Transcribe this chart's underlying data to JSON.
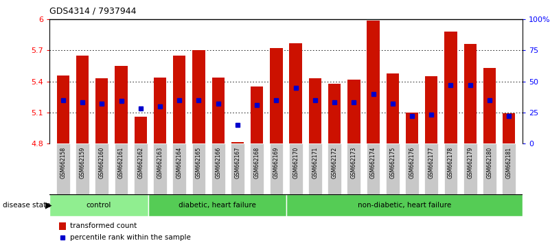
{
  "title": "GDS4314 / 7937944",
  "samples": [
    "GSM662158",
    "GSM662159",
    "GSM662160",
    "GSM662161",
    "GSM662162",
    "GSM662163",
    "GSM662164",
    "GSM662165",
    "GSM662166",
    "GSM662167",
    "GSM662168",
    "GSM662169",
    "GSM662170",
    "GSM662171",
    "GSM662172",
    "GSM662173",
    "GSM662174",
    "GSM662175",
    "GSM662176",
    "GSM662177",
    "GSM662178",
    "GSM662179",
    "GSM662180",
    "GSM662181"
  ],
  "bar_values": [
    5.46,
    5.65,
    5.43,
    5.55,
    5.06,
    5.44,
    5.65,
    5.7,
    5.44,
    4.81,
    5.35,
    5.72,
    5.77,
    5.43,
    5.38,
    5.42,
    5.99,
    5.48,
    5.1,
    5.45,
    5.88,
    5.76,
    5.53,
    5.09
  ],
  "percentile_values": [
    35,
    33,
    32,
    34,
    28,
    30,
    35,
    35,
    32,
    15,
    31,
    35,
    45,
    35,
    33,
    33,
    40,
    32,
    22,
    23,
    47,
    47,
    35,
    22
  ],
  "ymin": 4.8,
  "ymax": 6.0,
  "yticks": [
    4.8,
    5.1,
    5.4,
    5.7,
    6.0
  ],
  "ytick_labels": [
    "4.8",
    "5.1",
    "5.4",
    "5.7",
    "6"
  ],
  "right_yticks": [
    0,
    25,
    50,
    75,
    100
  ],
  "right_ytick_labels": [
    "0",
    "25",
    "50",
    "75",
    "100%"
  ],
  "bar_color": "#CC1100",
  "blue_color": "#0000CC",
  "group_boundaries": [
    0,
    5,
    12,
    24
  ],
  "group_labels": [
    "control",
    "diabetic, heart failure",
    "non-diabetic, heart failure"
  ],
  "group_colors": [
    "#90EE90",
    "#55CC55",
    "#55CC55"
  ],
  "tick_area_color": "#C8C8C8"
}
